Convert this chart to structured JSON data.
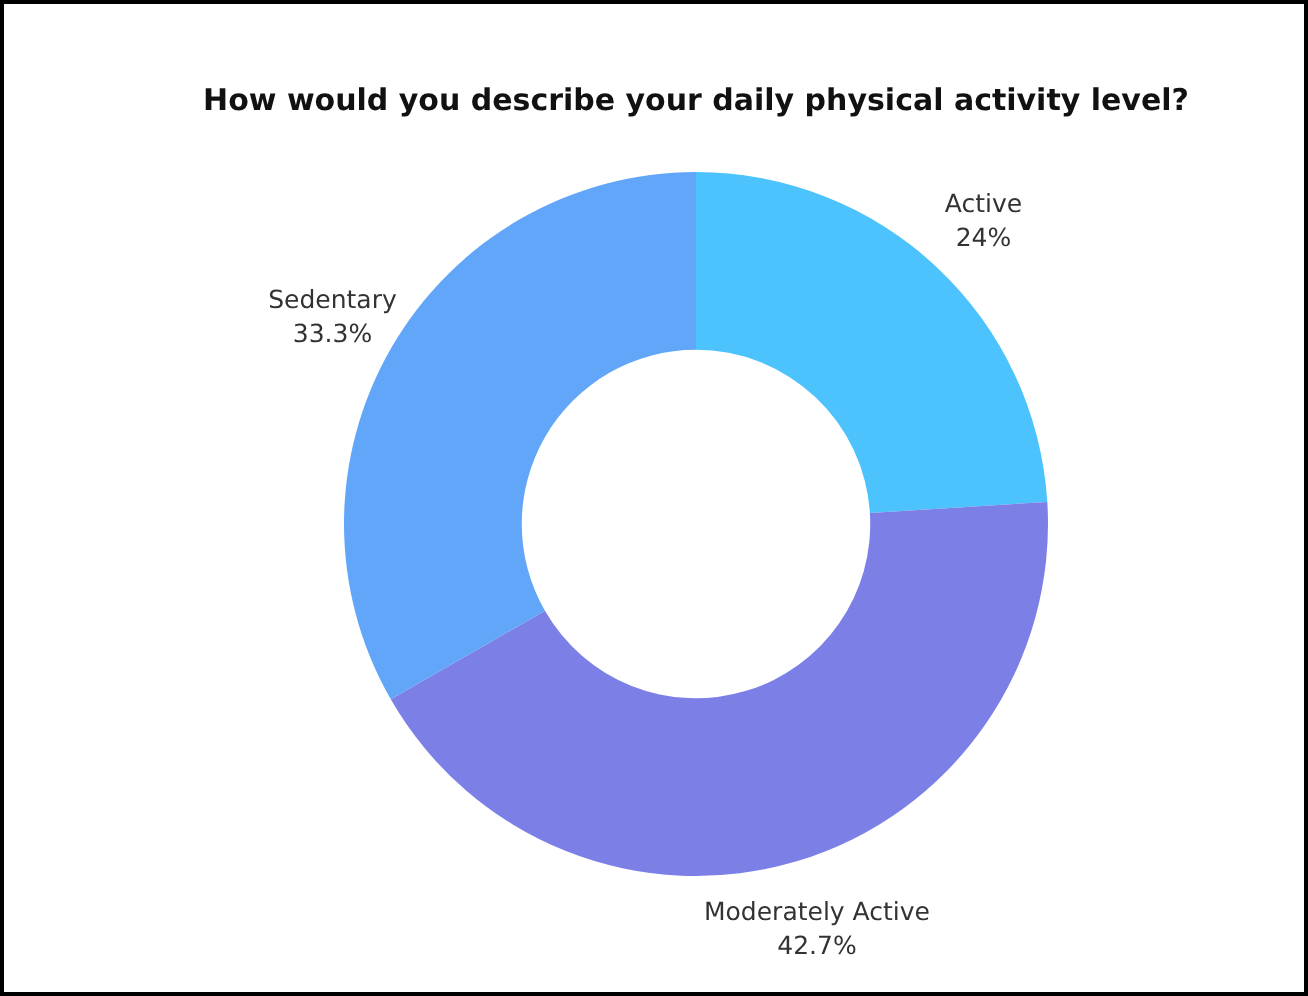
{
  "chart_data": {
    "type": "donut",
    "title": "How would you describe your daily physical activity level?",
    "categories": [
      "Active",
      "Moderately Active",
      "Sedentary"
    ],
    "values": [
      24,
      42.7,
      33.3
    ],
    "colors": [
      "#4cc3fc",
      "#7b7fe6",
      "#62a6f9"
    ],
    "value_labels": [
      "24%",
      "42.7%",
      "33.3%"
    ]
  }
}
